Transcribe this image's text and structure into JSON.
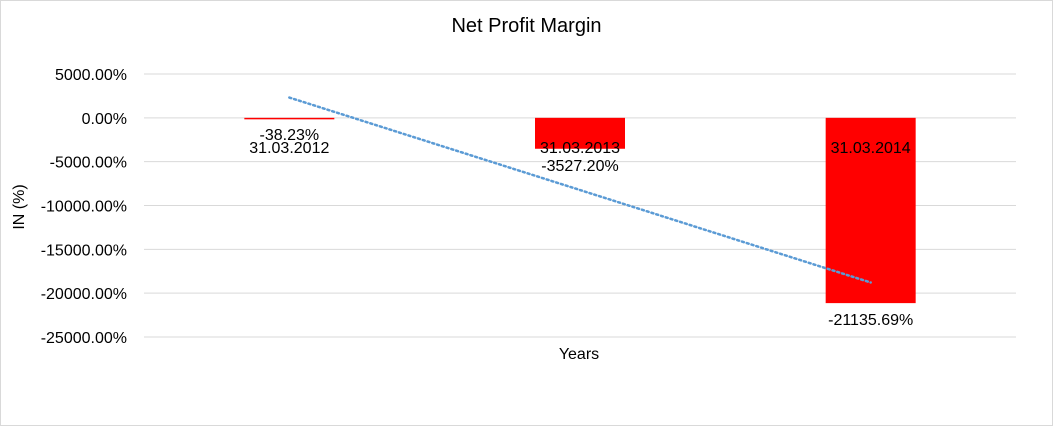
{
  "chart_data": {
    "type": "bar",
    "title": "Net Profit Margin",
    "xlabel": "Years",
    "ylabel": "IN (%)",
    "categories": [
      "31.03.2012",
      "31.03.2013",
      "31.03.2014"
    ],
    "values": [
      -38.23,
      -3527.2,
      -21135.69
    ],
    "data_labels": [
      "-38.23%",
      "-3527.20%",
      "-21135.69%"
    ],
    "y_ticks": [
      {
        "value": 5000,
        "label": "5000.00%"
      },
      {
        "value": 0,
        "label": "0.00%"
      },
      {
        "value": -5000,
        "label": "-5000.00%"
      },
      {
        "value": -10000,
        "label": "-10000.00%"
      },
      {
        "value": -15000,
        "label": "-15000.00%"
      },
      {
        "value": -20000,
        "label": "-20000.00%"
      },
      {
        "value": -25000,
        "label": "-25000.00%"
      }
    ],
    "ylim": [
      -25000,
      5000
    ],
    "grid": true,
    "legend": "none",
    "bar_color": "#ff0000",
    "gridline_color": "#d9d9d9",
    "trendline": {
      "type": "linear",
      "style": "dotted",
      "color": "#5b9bd5"
    }
  }
}
